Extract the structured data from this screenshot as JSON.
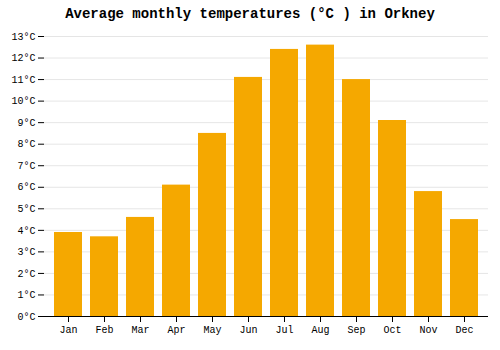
{
  "chart_data": {
    "type": "bar",
    "title": "Average monthly temperatures (°C ) in Orkney",
    "categories": [
      "Jan",
      "Feb",
      "Mar",
      "Apr",
      "May",
      "Jun",
      "Jul",
      "Aug",
      "Sep",
      "Oct",
      "Nov",
      "Dec"
    ],
    "values": [
      3.9,
      3.7,
      4.6,
      6.1,
      8.5,
      11.1,
      12.4,
      12.6,
      11.0,
      9.1,
      5.8,
      4.5
    ],
    "color": "#F5A800",
    "ylim": [
      0,
      13
    ],
    "yticks": [
      {
        "value": 0,
        "label": "0°C"
      },
      {
        "value": 1,
        "label": "1°C"
      },
      {
        "value": 2,
        "label": "2°C"
      },
      {
        "value": 3,
        "label": "3°C"
      },
      {
        "value": 4,
        "label": "4°C"
      },
      {
        "value": 5,
        "label": "5°C"
      },
      {
        "value": 6,
        "label": "6°C"
      },
      {
        "value": 7,
        "label": "7°C"
      },
      {
        "value": 8,
        "label": "8°C"
      },
      {
        "value": 9,
        "label": "9°C"
      },
      {
        "value": 10,
        "label": "10°C"
      },
      {
        "value": 11,
        "label": "11°C"
      },
      {
        "value": 12,
        "label": "12°C"
      },
      {
        "value": 13,
        "label": "13°C"
      }
    ],
    "grid": true
  }
}
